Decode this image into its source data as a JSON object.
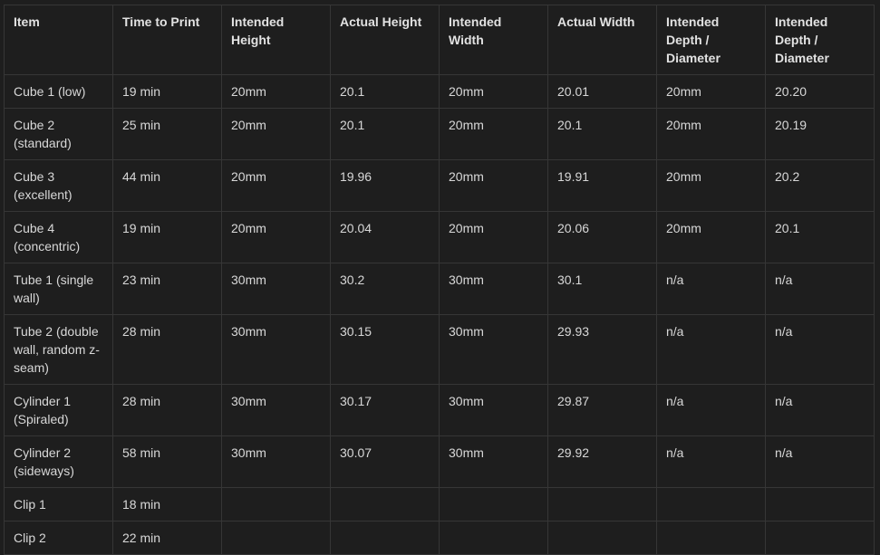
{
  "table": {
    "headers": [
      "Item",
      "Time to Print",
      "Intended Height",
      "Actual Height",
      "Intended Width",
      "Actual Width",
      "Intended Depth / Diameter",
      "Intended Depth / Diameter"
    ],
    "rows": [
      [
        "Cube 1 (low)",
        "19 min",
        "20mm",
        "20.1",
        "20mm",
        "20.01",
        "20mm",
        "20.20"
      ],
      [
        "Cube 2 (standard)",
        "25 min",
        "20mm",
        "20.1",
        "20mm",
        "20.1",
        "20mm",
        "20.19"
      ],
      [
        "Cube 3 (excellent)",
        "44 min",
        "20mm",
        "19.96",
        "20mm",
        "19.91",
        "20mm",
        "20.2"
      ],
      [
        "Cube 4 (concentric)",
        "19 min",
        "20mm",
        "20.04",
        "20mm",
        "20.06",
        "20mm",
        "20.1"
      ],
      [
        "Tube 1 (single wall)",
        "23 min",
        "30mm",
        "30.2",
        "30mm",
        "30.1",
        "n/a",
        "n/a"
      ],
      [
        "Tube 2 (double wall, random z-seam)",
        "28 min",
        "30mm",
        "30.15",
        "30mm",
        "29.93",
        "n/a",
        "n/a"
      ],
      [
        "Cylinder 1 (Spiraled)",
        "28 min",
        "30mm",
        "30.17",
        "30mm",
        "29.87",
        "n/a",
        "n/a"
      ],
      [
        "Cylinder 2 (sideways)",
        "58 min",
        "30mm",
        "30.07",
        "30mm",
        "29.92",
        "n/a",
        "n/a"
      ],
      [
        "Clip 1",
        "18 min",
        "",
        "",
        "",
        "",
        "",
        ""
      ],
      [
        "Clip 2",
        "22 min",
        "",
        "",
        "",
        "",
        "",
        ""
      ]
    ]
  }
}
